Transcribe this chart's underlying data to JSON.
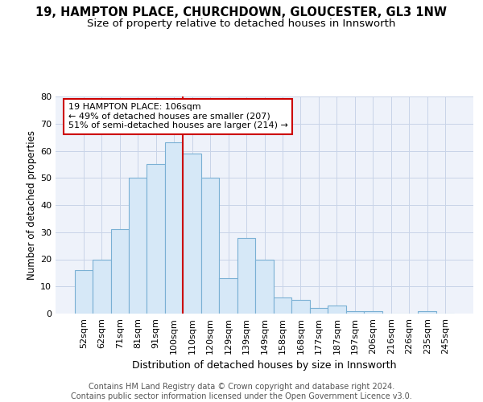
{
  "title": "19, HAMPTON PLACE, CHURCHDOWN, GLOUCESTER, GL3 1NW",
  "subtitle": "Size of property relative to detached houses in Innsworth",
  "xlabel": "Distribution of detached houses by size in Innsworth",
  "ylabel": "Number of detached properties",
  "categories": [
    "52sqm",
    "62sqm",
    "71sqm",
    "81sqm",
    "91sqm",
    "100sqm",
    "110sqm",
    "120sqm",
    "129sqm",
    "139sqm",
    "149sqm",
    "158sqm",
    "168sqm",
    "177sqm",
    "187sqm",
    "197sqm",
    "206sqm",
    "216sqm",
    "226sqm",
    "235sqm",
    "245sqm"
  ],
  "values": [
    16,
    20,
    31,
    50,
    55,
    63,
    59,
    50,
    13,
    28,
    20,
    6,
    5,
    2,
    3,
    1,
    1,
    0,
    0,
    1,
    0
  ],
  "bar_color": "#d6e8f7",
  "bar_edge_color": "#7ab0d4",
  "grid_color": "#c8d4e8",
  "background_color": "#eef2fa",
  "vline_x_index": 5.5,
  "vline_color": "#cc0000",
  "annotation_text": "19 HAMPTON PLACE: 106sqm\n← 49% of detached houses are smaller (207)\n51% of semi-detached houses are larger (214) →",
  "annotation_box_color": "#ffffff",
  "annotation_box_edge": "#cc0000",
  "footer_text": "Contains HM Land Registry data © Crown copyright and database right 2024.\nContains public sector information licensed under the Open Government Licence v3.0.",
  "ylim": [
    0,
    80
  ],
  "yticks": [
    0,
    10,
    20,
    30,
    40,
    50,
    60,
    70,
    80
  ],
  "title_fontsize": 10.5,
  "subtitle_fontsize": 9.5,
  "xlabel_fontsize": 9,
  "ylabel_fontsize": 8.5,
  "tick_fontsize": 8,
  "footer_fontsize": 7,
  "annotation_fontsize": 8
}
